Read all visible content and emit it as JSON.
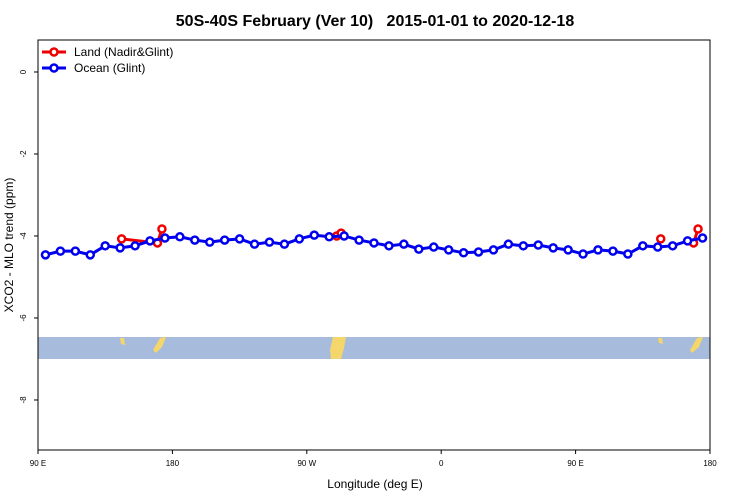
{
  "chart_data": {
    "type": "line",
    "title": "50S-40S February (Ver 10)   2015-01-01 to 2020-12-18",
    "x_label": "Longitude (deg E)",
    "y_label": "XCO2 - MLO trend (ppm)",
    "xlim": [
      90,
      540
    ],
    "xticks": [
      {
        "value": 90,
        "label": "90 E"
      },
      180,
      {
        "value": 270,
        "label": "90 W"
      },
      {
        "value": 360,
        "label": "0"
      },
      {
        "value": 450,
        "label": "90 E"
      },
      {
        "value": 540,
        "label": "180"
      }
    ],
    "ylim": [
      -9.22,
      0.78
    ],
    "yticks": [
      0,
      -2,
      -4,
      -6,
      -8
    ],
    "legend": "top-left",
    "series": [
      {
        "name": "Land (Nadir&Glint)",
        "color": "#ee0000",
        "x": [
          146,
          170,
          173,
          null,
          290,
          293,
          null,
          507,
          null,
          529,
          532
        ],
        "values": [
          -4.07,
          -4.17,
          -3.83,
          null,
          -4.0,
          -3.93,
          null,
          -4.07,
          null,
          -4.17,
          -3.83
        ]
      },
      {
        "name": "Ocean (Glint)",
        "color": "#0000ee",
        "x": [
          95,
          105,
          115,
          125,
          135,
          145,
          155,
          165,
          175,
          185,
          195,
          205,
          215,
          225,
          235,
          245,
          255,
          265,
          275,
          285,
          295,
          305,
          315,
          325,
          335,
          345,
          355,
          365,
          375,
          385,
          395,
          405,
          415,
          425,
          435,
          445,
          455,
          465,
          475,
          485,
          495,
          505,
          515,
          525,
          535
        ],
        "values": [
          -4.46,
          -4.37,
          -4.37,
          -4.46,
          -4.24,
          -4.29,
          -4.24,
          -4.12,
          -4.05,
          -4.02,
          -4.1,
          -4.15,
          -4.1,
          -4.07,
          -4.2,
          -4.15,
          -4.2,
          -4.07,
          -3.98,
          -4.02,
          -4.0,
          -4.1,
          -4.17,
          -4.24,
          -4.2,
          -4.32,
          -4.27,
          -4.34,
          -4.41,
          -4.39,
          -4.34,
          -4.2,
          -4.24,
          -4.22,
          -4.29,
          -4.34,
          -4.44,
          -4.34,
          -4.37,
          -4.44,
          -4.24,
          -4.27,
          -4.24,
          -4.12,
          -4.05
        ]
      }
    ]
  }
}
